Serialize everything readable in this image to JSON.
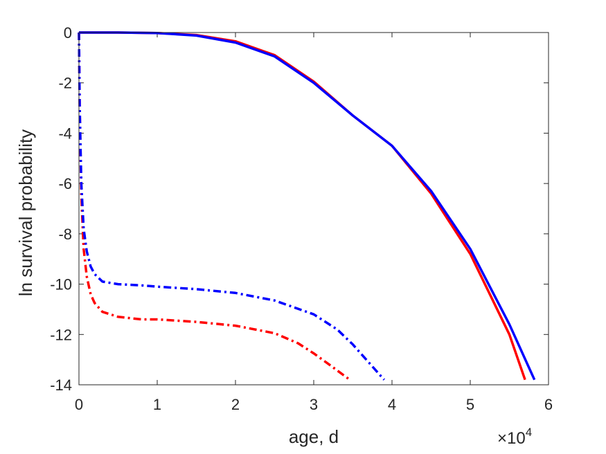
{
  "chart_data": {
    "type": "line",
    "title": "",
    "xlabel": "age, d",
    "ylabel": "ln survival probability",
    "x_exponent_multiplier": "×10",
    "x_exponent_power": "4",
    "xlim": [
      0,
      60000
    ],
    "ylim": [
      -14,
      0
    ],
    "xticks": [
      0,
      10000,
      20000,
      30000,
      40000,
      50000,
      60000
    ],
    "xtick_labels": [
      "0",
      "1",
      "2",
      "3",
      "4",
      "5",
      "6"
    ],
    "yticks": [
      0,
      -2,
      -4,
      -6,
      -8,
      -10,
      -12,
      -14
    ],
    "ytick_labels": [
      "0",
      "-2",
      "-4",
      "-6",
      "-8",
      "-10",
      "-12",
      "-14"
    ],
    "grid": false,
    "box": true,
    "series": [
      {
        "color": "#ff0000",
        "style": "solid",
        "points": [
          [
            0,
            0
          ],
          [
            5000,
            0
          ],
          [
            10000,
            -0.02
          ],
          [
            15000,
            -0.1
          ],
          [
            20000,
            -0.35
          ],
          [
            25000,
            -0.9
          ],
          [
            30000,
            -1.95
          ],
          [
            35000,
            -3.3
          ],
          [
            40000,
            -4.5
          ],
          [
            45000,
            -6.4
          ],
          [
            50000,
            -8.8
          ],
          [
            55000,
            -12.0
          ],
          [
            57000,
            -13.8
          ]
        ]
      },
      {
        "color": "#0000ff",
        "style": "solid",
        "points": [
          [
            0,
            0
          ],
          [
            5000,
            0
          ],
          [
            10000,
            -0.02
          ],
          [
            15000,
            -0.12
          ],
          [
            20000,
            -0.4
          ],
          [
            25000,
            -0.95
          ],
          [
            30000,
            -2.0
          ],
          [
            35000,
            -3.3
          ],
          [
            40000,
            -4.5
          ],
          [
            45000,
            -6.3
          ],
          [
            50000,
            -8.6
          ],
          [
            55000,
            -11.6
          ],
          [
            58200,
            -13.8
          ]
        ]
      },
      {
        "color": "#ff0000",
        "style": "dashdot",
        "points": [
          [
            0,
            0
          ],
          [
            100,
            -3.0
          ],
          [
            300,
            -6.5
          ],
          [
            600,
            -8.6
          ],
          [
            1000,
            -9.7
          ],
          [
            1500,
            -10.4
          ],
          [
            2000,
            -10.75
          ],
          [
            3000,
            -11.1
          ],
          [
            5000,
            -11.3
          ],
          [
            8000,
            -11.4
          ],
          [
            10000,
            -11.4
          ],
          [
            15000,
            -11.5
          ],
          [
            20000,
            -11.65
          ],
          [
            25000,
            -11.95
          ],
          [
            28000,
            -12.35
          ],
          [
            30000,
            -12.75
          ],
          [
            32000,
            -13.2
          ],
          [
            34600,
            -13.8
          ]
        ]
      },
      {
        "color": "#0000ff",
        "style": "dashdot",
        "points": [
          [
            0,
            0
          ],
          [
            100,
            -3.0
          ],
          [
            300,
            -6.0
          ],
          [
            600,
            -7.8
          ],
          [
            1000,
            -8.7
          ],
          [
            1500,
            -9.3
          ],
          [
            2000,
            -9.6
          ],
          [
            3000,
            -9.9
          ],
          [
            5000,
            -10.0
          ],
          [
            8000,
            -10.05
          ],
          [
            10000,
            -10.1
          ],
          [
            15000,
            -10.2
          ],
          [
            20000,
            -10.35
          ],
          [
            25000,
            -10.65
          ],
          [
            30000,
            -11.2
          ],
          [
            33000,
            -11.8
          ],
          [
            35000,
            -12.4
          ],
          [
            37000,
            -13.1
          ],
          [
            39000,
            -13.8
          ]
        ]
      }
    ]
  }
}
